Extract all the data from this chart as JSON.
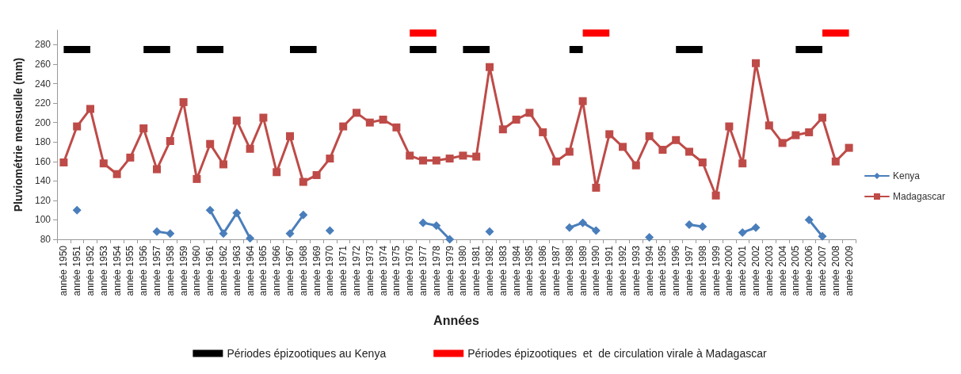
{
  "chart_data": {
    "type": "line",
    "xlabel": "Années",
    "ylabel": "Pluviométrie mensuelle (mm)",
    "categories": [
      "année 1950",
      "année 1951",
      "année 1952",
      "année 1953",
      "année 1954",
      "année 1955",
      "année 1956",
      "année 1957",
      "année 1958",
      "année 1959",
      "année 1960",
      "année 1961",
      "année 1962",
      "année 1963",
      "année 1964",
      "année 1965",
      "année 1966",
      "année 1967",
      "année 1968",
      "année 1969",
      "année 1970",
      "année 1971",
      "année 1972",
      "année 1973",
      "année 1974",
      "année 1975",
      "année 1976",
      "année 1977",
      "année 1978",
      "année 1979",
      "année 1980",
      "année 1981",
      "année 1982",
      "année 1983",
      "année 1984",
      "année 1985",
      "année 1986",
      "année 1987",
      "année 1988",
      "année 1989",
      "année 1990",
      "année 1991",
      "année 1992",
      "année 1993",
      "année 1994",
      "année 1995",
      "année 1996",
      "année 1997",
      "année 1998",
      "année 1999",
      "année 2000",
      "année 2001",
      "année 2002",
      "année 2003",
      "année 2004",
      "année 2005",
      "année 2006",
      "année 2007",
      "année 2008",
      "année 2009"
    ],
    "series": [
      {
        "name": "Kenya",
        "color": "#4a7ebb",
        "marker": "diamond",
        "values": [
          null,
          110,
          null,
          null,
          null,
          null,
          null,
          88,
          86,
          null,
          null,
          110,
          86,
          107,
          81,
          null,
          null,
          86,
          105,
          null,
          89,
          null,
          null,
          null,
          null,
          null,
          null,
          97,
          94,
          80,
          null,
          null,
          88,
          null,
          null,
          null,
          null,
          null,
          92,
          97,
          89,
          null,
          null,
          null,
          82,
          null,
          null,
          95,
          93,
          null,
          null,
          87,
          92,
          null,
          null,
          null,
          100,
          83,
          null,
          null
        ]
      },
      {
        "name": "Madagascar",
        "color": "#be4b48",
        "marker": "square",
        "values": [
          159,
          196,
          214,
          158,
          147,
          164,
          194,
          152,
          181,
          221,
          142,
          178,
          157,
          202,
          173,
          205,
          149,
          186,
          139,
          146,
          163,
          196,
          210,
          200,
          203,
          195,
          166,
          161,
          161,
          163,
          166,
          165,
          257,
          193,
          203,
          210,
          190,
          160,
          170,
          222,
          133,
          188,
          175,
          156,
          186,
          172,
          182,
          170,
          159,
          125,
          196,
          158,
          261,
          197,
          179,
          187,
          190,
          205,
          160,
          174
        ]
      },
      {
        "name": "Périodes épizootiques au Kenya",
        "color": "#000000",
        "marker": "none",
        "values": [
          275,
          275,
          275,
          null,
          null,
          null,
          275,
          275,
          275,
          null,
          275,
          275,
          275,
          null,
          null,
          null,
          null,
          275,
          275,
          275,
          null,
          null,
          null,
          null,
          null,
          null,
          275,
          275,
          275,
          null,
          275,
          275,
          275,
          null,
          null,
          null,
          null,
          null,
          275,
          275,
          null,
          null,
          null,
          null,
          null,
          null,
          275,
          275,
          275,
          null,
          null,
          null,
          null,
          null,
          null,
          275,
          275,
          275,
          null,
          null
        ]
      },
      {
        "name": "Périodes épizootiques  et  de circulation virale à Madagascar",
        "color": "#ff0000",
        "marker": "none",
        "values": [
          null,
          null,
          null,
          null,
          null,
          null,
          null,
          null,
          null,
          null,
          null,
          null,
          null,
          null,
          null,
          null,
          null,
          null,
          null,
          null,
          null,
          null,
          null,
          null,
          null,
          null,
          292,
          292,
          292,
          null,
          null,
          null,
          null,
          null,
          null,
          null,
          null,
          null,
          null,
          292,
          292,
          292,
          null,
          null,
          null,
          null,
          null,
          null,
          null,
          null,
          null,
          null,
          null,
          null,
          null,
          null,
          null,
          292,
          292,
          292
        ]
      }
    ],
    "ylim": [
      80,
      295
    ],
    "yticks": [
      80,
      100,
      120,
      140,
      160,
      180,
      200,
      220,
      240,
      260,
      280
    ],
    "grid": false,
    "legend": "right",
    "line_style": "solid"
  }
}
